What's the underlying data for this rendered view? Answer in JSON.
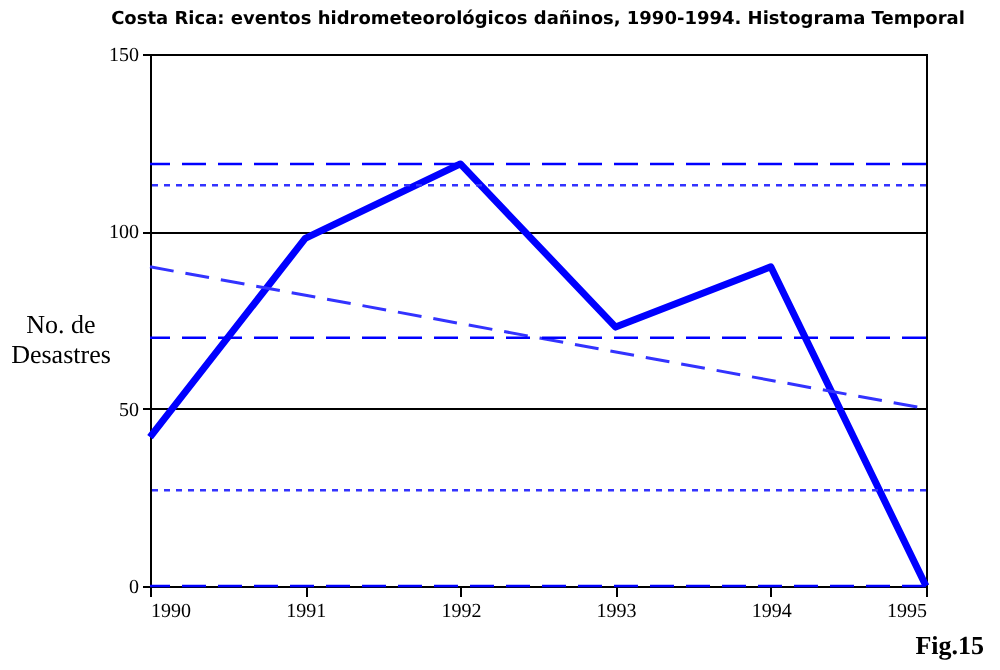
{
  "chart_data": {
    "type": "line",
    "title": "Costa Rica: eventos hidrometeorológicos dañinos, 1990-1994. Histograma Temporal",
    "ylabel": "No. de\nDesastres",
    "x": [
      1990,
      1991,
      1992,
      1993,
      1994,
      1995
    ],
    "series": [
      {
        "color": "#0000ff",
        "values": [
          42,
          98,
          119,
          73,
          90,
          0
        ],
        "line_style": "solid"
      },
      {
        "type": "line",
        "x": [
          1990,
          1995
        ],
        "values": [
          90,
          50
        ],
        "color": "#3333ff",
        "line_style": "dashed"
      }
    ],
    "xlim": [
      1990,
      1995
    ],
    "xticks": [
      1990,
      1991,
      1992,
      1993,
      1994,
      1995
    ],
    "ylim": [
      0,
      150
    ],
    "yticks": [
      0,
      50,
      100,
      150
    ],
    "grid": "y",
    "marker": "none",
    "ref_lines": [
      {
        "axis": "y",
        "value": 119,
        "color": "#0000ff",
        "line_style": "dashed"
      },
      {
        "axis": "y",
        "value": 113,
        "color": "#3333ff",
        "line_style": "dotted"
      },
      {
        "axis": "y",
        "value": 70,
        "color": "#0000ff",
        "line_style": "dashed"
      },
      {
        "axis": "y",
        "value": 27,
        "color": "#3333ff",
        "line_style": "dotted"
      },
      {
        "axis": "y",
        "value": 0,
        "color": "#0000ff",
        "line_style": "dashed"
      }
    ],
    "annotations": [
      "Fig.15"
    ]
  }
}
